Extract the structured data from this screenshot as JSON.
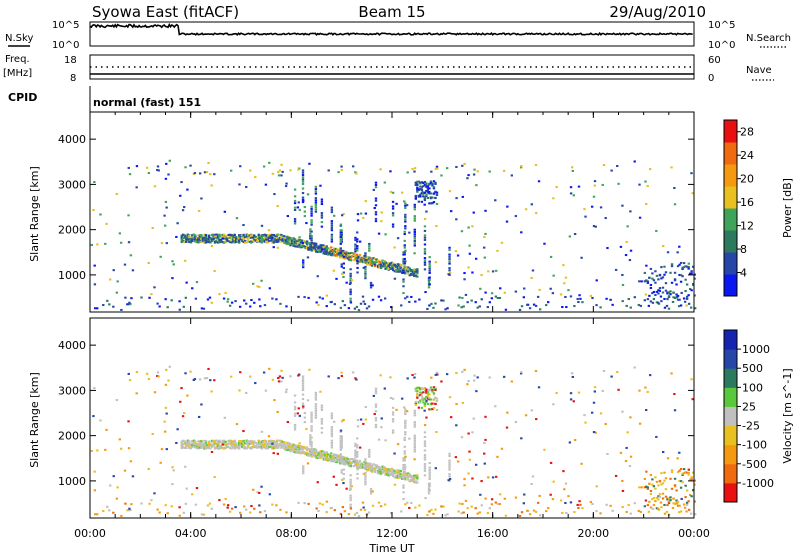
{
  "header": {
    "title": "Syowa East (fitACF)",
    "beam": "Beam 15",
    "date": "29/Aug/2010"
  },
  "noise_panel": {
    "left_label": "N.Sky",
    "right_label": "N.Search",
    "left_ticks": [
      "10^5",
      "10^0"
    ],
    "right_ticks": [
      "10^5",
      "10^0"
    ]
  },
  "freq_panel": {
    "left_label_line1": "Freq.",
    "left_label_line2": "[MHz]",
    "right_label": "Nave",
    "left_ticks": [
      "18",
      "8"
    ],
    "right_ticks": [
      "60",
      "0"
    ]
  },
  "cpid": {
    "label": "CPID",
    "value": "normal (fast) 151"
  },
  "colors": {
    "power_scale": [
      "#0a17f0",
      "#2647a8",
      "#2c7a5e",
      "#3fa45a",
      "#e8c020",
      "#f59a10",
      "#f06a10",
      "#e81010"
    ],
    "velocity_scale": [
      "#e81010",
      "#f06a10",
      "#f59a10",
      "#e8c020",
      "#c0c0c0",
      "#5ac83c",
      "#2c7a5e",
      "#2647a8",
      "#1525b0"
    ]
  },
  "chart_data": [
    {
      "type": "heatmap",
      "panel": "power",
      "ylabel": "Slant Range [km]",
      "yticks": [
        1000,
        2000,
        3000,
        4000
      ],
      "ylim": [
        180,
        4600
      ],
      "xlim_hours": [
        0,
        24
      ],
      "colorbar_label": "Power [dB]",
      "colorbar_ticks": [
        "4",
        "8",
        "12",
        "16",
        "20",
        "24",
        "28"
      ],
      "colorbar_range": [
        0,
        30
      ]
    },
    {
      "type": "heatmap",
      "panel": "velocity",
      "ylabel": "Slant Range [km]",
      "yticks": [
        1000,
        2000,
        3000,
        4000
      ],
      "ylim": [
        180,
        4600
      ],
      "xlim_hours": [
        0,
        24
      ],
      "colorbar_label": "Velocity [m s^-1]",
      "colorbar_ticks": [
        "1000",
        "500",
        "100",
        "25",
        "-25",
        "-100",
        "-500",
        "-1000"
      ]
    }
  ],
  "xaxis": {
    "label": "Time UT",
    "ticks": [
      "00:00",
      "04:00",
      "08:00",
      "12:00",
      "16:00",
      "20:00",
      "00:00"
    ]
  }
}
